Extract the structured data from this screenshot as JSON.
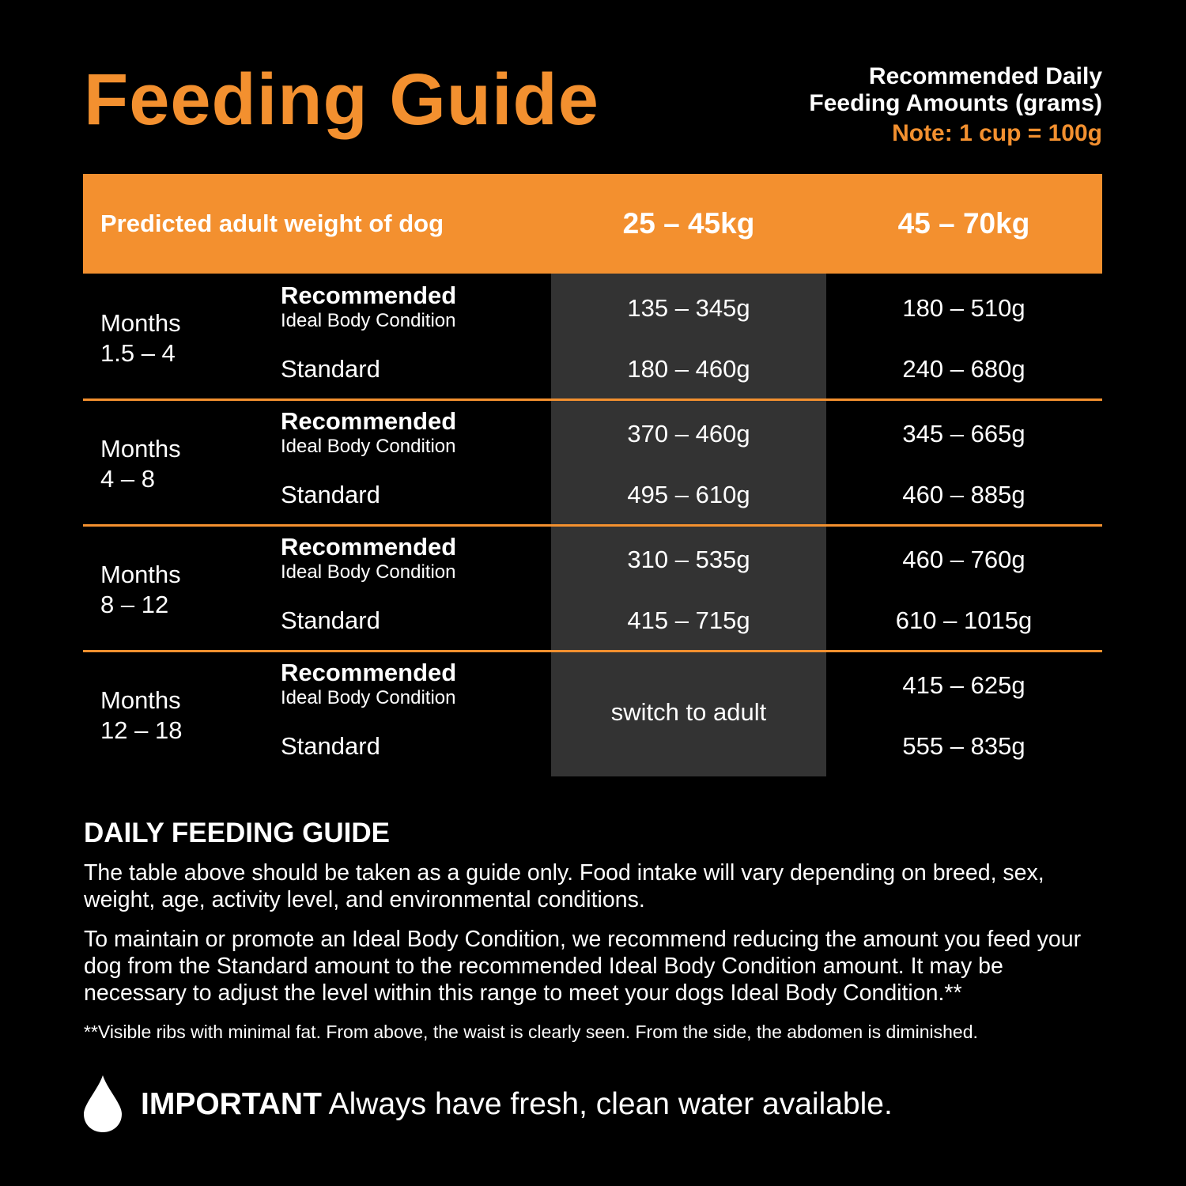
{
  "title": "Feeding Guide",
  "header_note": {
    "line1": "Recommended Daily",
    "line2": "Feeding Amounts (grams)",
    "note": "Note: 1 cup = 100g"
  },
  "colors": {
    "accent": "#f3902f",
    "background": "#000000",
    "highlight_column": "#333333"
  },
  "table": {
    "header": {
      "label": "Predicted adult weight of dog",
      "col1": "25 – 45kg",
      "col2": "45 – 70kg"
    },
    "rows": [
      {
        "months": "Months",
        "range": "1.5 – 4",
        "rec": "Recommended",
        "ideal": "Ideal Body Condition",
        "std": "Standard",
        "c1_rec": "135 – 345g",
        "c1_std": "180 – 460g",
        "c2_rec": "180 – 510g",
        "c2_std": "240 – 680g"
      },
      {
        "months": "Months",
        "range": "4 – 8",
        "rec": "Recommended",
        "ideal": "Ideal Body Condition",
        "std": "Standard",
        "c1_rec": "370 – 460g",
        "c1_std": "495 – 610g",
        "c2_rec": "345 – 665g",
        "c2_std": "460 – 885g"
      },
      {
        "months": "Months",
        "range": "8 – 12",
        "rec": "Recommended",
        "ideal": "Ideal Body Condition",
        "std": "Standard",
        "c1_rec": "310 – 535g",
        "c1_std": "415 – 715g",
        "c2_rec": "460 – 760g",
        "c2_std": "610 – 1015g"
      },
      {
        "months": "Months",
        "range": "12 – 18",
        "rec": "Recommended",
        "ideal": "Ideal Body Condition",
        "std": "Standard",
        "c1_switch": "switch to adult",
        "c2_rec": "415 – 625g",
        "c2_std": "555 – 835g"
      }
    ]
  },
  "guide": {
    "heading": "DAILY FEEDING GUIDE",
    "p1": "The table above should be taken as a guide only. Food intake will vary depending on breed, sex, weight, age, activity level, and environmental conditions.",
    "p2": "To maintain or promote an Ideal Body Condition, we recommend reducing the amount you feed your dog from the Standard amount to the recommended Ideal Body Condition amount. It may be necessary to adjust the level within this range to meet your dogs Ideal Body Condition.**",
    "footnote": "**Visible ribs with minimal fat. From above, the waist is clearly seen. From the side, the abdomen is diminished."
  },
  "important": {
    "icon": "water-drop-icon",
    "label": "IMPORTANT",
    "text": " Always have fresh, clean water available."
  }
}
